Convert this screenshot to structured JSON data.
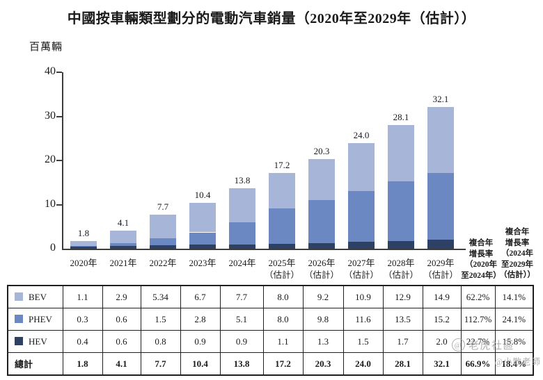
{
  "title": "中國按車輛類型劃分的電動汽車銷量（2020年至2029年（估計））",
  "unit_label": "百萬輛",
  "chart_data": {
    "type": "bar",
    "stacked": true,
    "title": "中國按車輛類型劃分的電動汽車銷量（2020年至2029年（估計））",
    "ylabel": "百萬輛",
    "ylim": [
      0,
      40
    ],
    "yticks": [
      0,
      10,
      20,
      30,
      40
    ],
    "grid": false,
    "legend_position": "table-left-column",
    "categories": [
      "2020年",
      "2021年",
      "2022年",
      "2023年",
      "2024年",
      "2025年",
      "2026年",
      "2027年",
      "2028年",
      "2029年"
    ],
    "category_notes": [
      "",
      "",
      "",
      "",
      "",
      "（估計）",
      "（估計）",
      "（估計）",
      "（估計）",
      "（估計）"
    ],
    "series": [
      {
        "name": "HEV",
        "color": "#2d4165",
        "values": [
          0.4,
          0.6,
          0.8,
          0.9,
          0.9,
          1.1,
          1.3,
          1.5,
          1.7,
          2.0
        ]
      },
      {
        "name": "PHEV",
        "color": "#6b88c3",
        "values": [
          0.3,
          0.6,
          1.5,
          2.8,
          5.1,
          8.0,
          9.8,
          11.6,
          13.5,
          15.2
        ]
      },
      {
        "name": "BEV",
        "color": "#a6b5d8",
        "values": [
          1.1,
          2.9,
          5.34,
          6.7,
          7.7,
          8.0,
          9.2,
          10.9,
          12.9,
          14.9
        ]
      }
    ],
    "total_labels": [
      "1.8",
      "4.1",
      "7.7",
      "10.4",
      "13.8",
      "17.2",
      "20.3",
      "24.0",
      "28.1",
      "32.1"
    ]
  },
  "cagr_columns": [
    {
      "lines": [
        "複合年",
        "增長率",
        "（2020年",
        "至2024年）"
      ]
    },
    {
      "lines": [
        "複合年",
        "增長率",
        "（2024年",
        "至2029年",
        "（估計））"
      ]
    }
  ],
  "table": {
    "rows": [
      {
        "label": "BEV",
        "swatch_color": "#a6b5d8",
        "bold": false,
        "values": [
          "1.1",
          "2.9",
          "5.34",
          "6.7",
          "7.7",
          "8.0",
          "9.2",
          "10.9",
          "12.9",
          "14.9",
          "62.2%",
          "14.1%"
        ]
      },
      {
        "label": "PHEV",
        "swatch_color": "#6b88c3",
        "bold": false,
        "values": [
          "0.3",
          "0.6",
          "1.5",
          "2.8",
          "5.1",
          "8.0",
          "9.8",
          "11.6",
          "13.5",
          "15.2",
          "112.7%",
          "24.1%"
        ]
      },
      {
        "label": "HEV",
        "swatch_color": "#2d4165",
        "bold": false,
        "values": [
          "0.4",
          "0.6",
          "0.8",
          "0.9",
          "0.9",
          "1.1",
          "1.3",
          "1.5",
          "1.7",
          "2.0",
          "22.7%",
          "15.8%"
        ]
      },
      {
        "label": "總計",
        "swatch_color": null,
        "bold": true,
        "values": [
          "1.8",
          "4.1",
          "7.7",
          "10.4",
          "13.8",
          "17.2",
          "20.3",
          "24.0",
          "28.1",
          "32.1",
          "66.9%",
          "18.4%"
        ]
      }
    ]
  },
  "watermark": {
    "logo": "@",
    "line1": "老虎社區",
    "line2": "@小散老師"
  }
}
